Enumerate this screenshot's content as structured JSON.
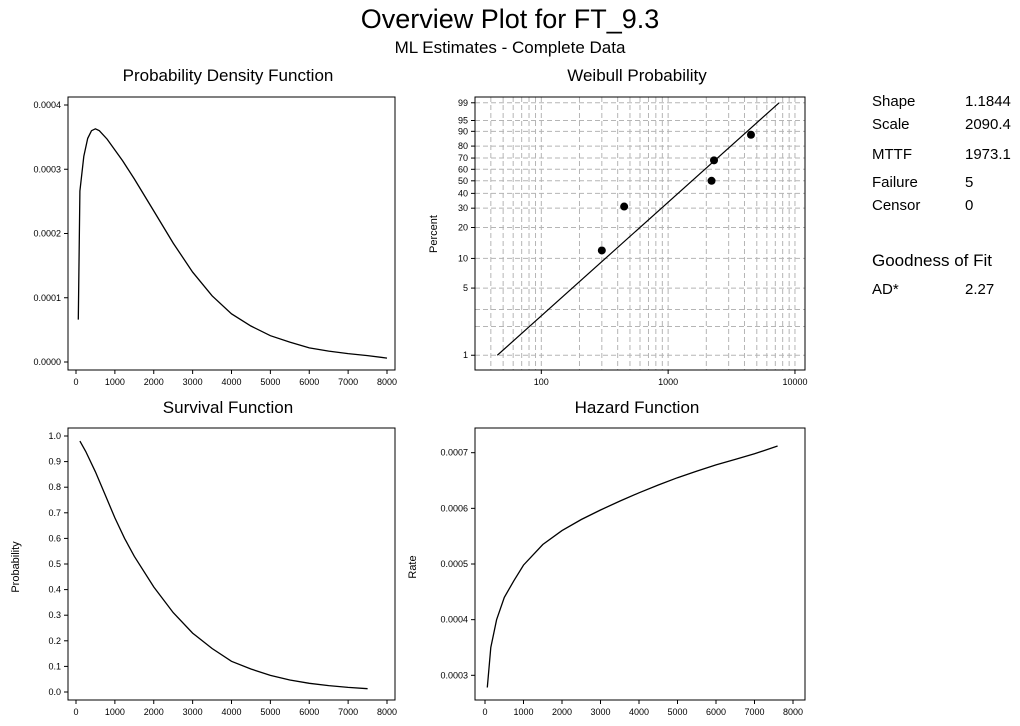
{
  "title": "Overview Plot for FT_9.3",
  "subtitle": "ML Estimates - Complete Data",
  "stats": [
    {
      "label": "Shape",
      "value": "1.1844"
    },
    {
      "label": "Scale",
      "value": "2090.4"
    },
    {
      "label": "MTTF",
      "value": "1973.1"
    },
    {
      "label": "Failure",
      "value": "5"
    },
    {
      "label": "Censor",
      "value": "0"
    }
  ],
  "goodness": {
    "title": "Goodness of Fit",
    "label": "AD*",
    "value": "2.27"
  },
  "chart_data": [
    {
      "type": "line",
      "title": "Probability Density Function",
      "xlabel": "",
      "ylabel": "",
      "xlim": [
        0,
        8000
      ],
      "ylim": [
        0,
        0.0004
      ],
      "x_ticks": [
        0,
        1000,
        2000,
        3000,
        4000,
        5000,
        6000,
        7000,
        8000
      ],
      "x_tick_labels": [
        "0",
        "1000",
        "2000",
        "3000",
        "4000",
        "5000",
        "6000",
        "7000",
        "8000"
      ],
      "y_ticks": [
        0,
        0.0001,
        0.0002,
        0.0003,
        0.0004
      ],
      "y_tick_labels": [
        "0.0000",
        "0.0001",
        "0.0002",
        "0.0003",
        "0.0004"
      ],
      "grid": false,
      "series": [
        {
          "x": [
            60,
            100,
            200,
            300,
            400,
            500,
            600,
            800,
            1000,
            1200,
            1500,
            2000,
            2500,
            3000,
            3500,
            4000,
            4500,
            5000,
            5500,
            6000,
            6500,
            7000,
            7500,
            8000
          ],
          "y": [
            6.6e-05,
            0.000266,
            0.00032,
            0.000348,
            0.00036,
            0.000363,
            0.00036,
            0.000347,
            0.00033,
            0.000313,
            0.000285,
            0.000235,
            0.000185,
            0.00014,
            0.000103,
            7.5e-05,
            5.6e-05,
            4.1e-05,
            3.1e-05,
            2.2e-05,
            1.7e-05,
            1.3e-05,
            1e-05,
            6e-06
          ]
        }
      ]
    },
    {
      "type": "scatter",
      "title": "Weibull Probability",
      "xlabel": "",
      "ylabel": "Percent",
      "x_scale": "log",
      "y_scale": "weibull",
      "xlim": [
        30,
        12000
      ],
      "ylim": [
        0.7,
        99.5
      ],
      "x_ticks": [
        100,
        1000,
        10000
      ],
      "x_tick_labels": [
        "100",
        "1000",
        "10000"
      ],
      "y_ticks": [
        1,
        5,
        10,
        20,
        30,
        40,
        50,
        60,
        70,
        80,
        90,
        95,
        99
      ],
      "y_tick_labels": [
        "1",
        "5",
        "10",
        "20",
        "30",
        "40",
        "50",
        "60",
        "70",
        "80",
        "90",
        "95",
        "99"
      ],
      "grid": true,
      "points": [
        {
          "x": 300,
          "y": 12
        },
        {
          "x": 450,
          "y": 31
        },
        {
          "x": 2200,
          "y": 50
        },
        {
          "x": 2300,
          "y": 68
        },
        {
          "x": 4500,
          "y": 88
        }
      ],
      "fit_line": {
        "x": [
          45,
          7500
        ],
        "y": [
          1,
          99
        ]
      }
    },
    {
      "type": "line",
      "title": "Survival Function",
      "xlabel": "",
      "ylabel": "Probability",
      "xlim": [
        0,
        8000
      ],
      "ylim": [
        0,
        1.0
      ],
      "x_ticks": [
        0,
        1000,
        2000,
        3000,
        4000,
        5000,
        6000,
        7000,
        8000
      ],
      "x_tick_labels": [
        "0",
        "1000",
        "2000",
        "3000",
        "4000",
        "5000",
        "6000",
        "7000",
        "8000"
      ],
      "y_ticks": [
        0,
        0.1,
        0.2,
        0.3,
        0.4,
        0.5,
        0.6,
        0.7,
        0.8,
        0.9,
        1.0
      ],
      "y_tick_labels": [
        "0.0",
        "0.1",
        "0.2",
        "0.3",
        "0.4",
        "0.5",
        "0.6",
        "0.7",
        "0.8",
        "0.9",
        "1.0"
      ],
      "grid": false,
      "series": [
        {
          "x": [
            100,
            250,
            500,
            750,
            1000,
            1250,
            1500,
            2000,
            2500,
            3000,
            3500,
            4000,
            4500,
            5000,
            5500,
            6000,
            6500,
            7000,
            7500
          ],
          "y": [
            0.98,
            0.94,
            0.86,
            0.77,
            0.68,
            0.6,
            0.53,
            0.41,
            0.31,
            0.23,
            0.17,
            0.12,
            0.09,
            0.065,
            0.047,
            0.034,
            0.025,
            0.018,
            0.013
          ]
        }
      ]
    },
    {
      "type": "line",
      "title": "Hazard Function",
      "xlabel": "",
      "ylabel": "Rate",
      "xlim": [
        0,
        8000
      ],
      "ylim": [
        0.00027,
        0.00073
      ],
      "x_ticks": [
        0,
        1000,
        2000,
        3000,
        4000,
        5000,
        6000,
        7000,
        8000
      ],
      "x_tick_labels": [
        "0",
        "1000",
        "2000",
        "3000",
        "4000",
        "5000",
        "6000",
        "7000",
        "8000"
      ],
      "y_ticks": [
        0.0003,
        0.0004,
        0.0005,
        0.0006,
        0.0007
      ],
      "y_tick_labels": [
        "0.0003",
        "0.0004",
        "0.0005",
        "0.0006",
        "0.0007"
      ],
      "grid": false,
      "series": [
        {
          "x": [
            60,
            150,
            300,
            500,
            750,
            1000,
            1500,
            2000,
            2500,
            3000,
            3500,
            4000,
            4500,
            5000,
            5500,
            6000,
            6500,
            7000,
            7600
          ],
          "y": [
            0.000278,
            0.00035,
            0.0004,
            0.00044,
            0.00047,
            0.000498,
            0.000535,
            0.00056,
            0.00058,
            0.000597,
            0.000613,
            0.000628,
            0.000642,
            0.000655,
            0.000667,
            0.000678,
            0.000688,
            0.000698,
            0.000712
          ]
        }
      ]
    }
  ]
}
